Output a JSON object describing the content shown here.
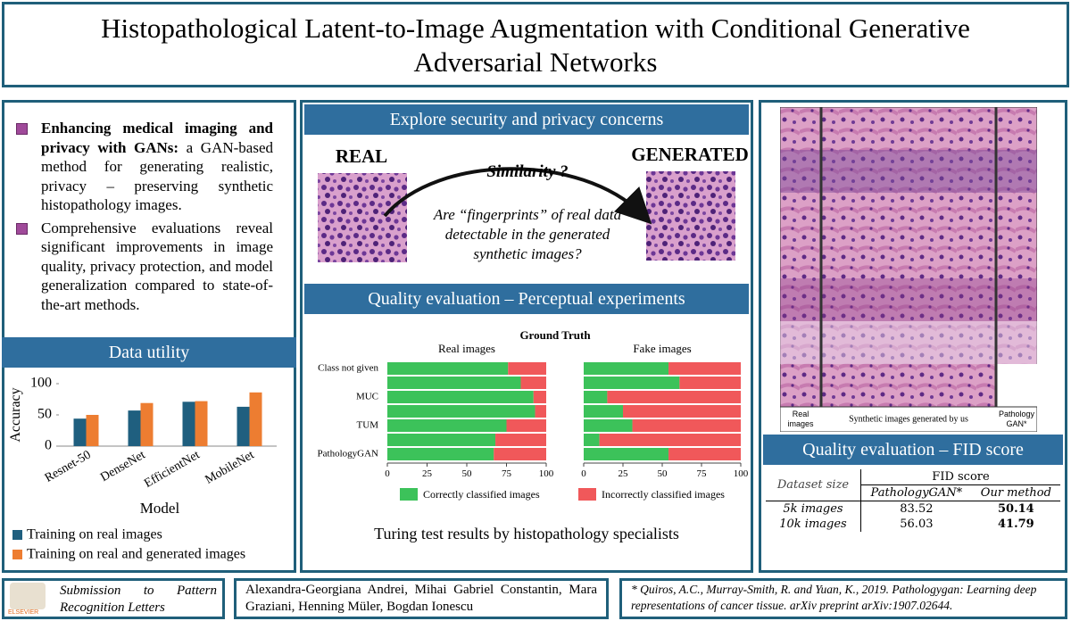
{
  "header": {
    "title": "Histopathological Latent-to-Image Augmentation with Conditional Generative Adversarial Networks"
  },
  "intro": {
    "bullets": [
      {
        "bold": "Enhancing medical imaging and privacy with GANs:",
        "text": " a GAN-based method for generating realistic, privacy – preserving synthetic histopathology images."
      },
      {
        "text": "Comprehensive evaluations reveal significant improvements in image quality, privacy protection, and model generalization compared to state-of-the-art methods."
      }
    ]
  },
  "data_utility": {
    "title": "Data utility"
  },
  "security": {
    "title": "Explore security and privacy concerns",
    "real": "REAL",
    "generated": "GENERATED",
    "similarity": "Similarity ?",
    "question": "Are “fingerprints” of real data detectable in the generated synthetic images?"
  },
  "perceptual": {
    "title": "Quality evaluation – Perceptual experiments",
    "caption": "Turing test results by histopathology specialists"
  },
  "samples": {
    "labels": [
      "Real images",
      "Synthetic images generated by us",
      "Pathology GAN*"
    ]
  },
  "fid": {
    "title": "Quality evaluation – FID score",
    "table": {
      "group_header": "FID score",
      "row_header": "Dataset size",
      "columns": [
        "PathologyGAN*",
        "Our method"
      ],
      "rows": [
        [
          "5k images",
          "83.52",
          "50.14"
        ],
        [
          "10k images",
          "56.03",
          "41.79"
        ]
      ]
    }
  },
  "footer": {
    "venue": "Submission to Pattern Recognition Letters",
    "publisher": "ELSEVIER",
    "authors": "Alexandra-Georgiana Andrei, Mihai Gabriel Constantin, Mara Graziani, Henning Müler, Bogdan Ionescu",
    "reference": "* Quiros, A.C., Murray-Smith, R. and Yuan, K., 2019. Pathologygan: Learning deep representations of cancer tissue. arXiv preprint arXiv:1907.02644."
  },
  "chart_data": [
    {
      "type": "bar",
      "categories": [
        "Resnet-50",
        "DenseNet",
        "EfficientNet",
        "MobileNet"
      ],
      "series": [
        {
          "name": "Training on real images",
          "color": "#1f5f7f",
          "values": [
            44,
            57,
            71,
            63
          ]
        },
        {
          "name": "Training on real and generated images",
          "color": "#ed7d31",
          "values": [
            50,
            69,
            72,
            86
          ]
        }
      ],
      "y_label": "Accuracy",
      "x_label": "Model",
      "ylim": [
        0,
        100
      ],
      "yticks": [
        0,
        50,
        100
      ]
    },
    {
      "type": "barh_stacked",
      "title": "Ground Truth",
      "categories": [
        "Class not given",
        null,
        "MUC",
        null,
        "TUM",
        null,
        "PathologyGAN"
      ],
      "legend": [
        {
          "name": "Correctly classified images",
          "color": "#3cc25a"
        },
        {
          "name": "Incorrectly classified images",
          "color": "#f0585a"
        }
      ],
      "panels": [
        {
          "title": "Real images",
          "series": [
            {
              "values": [
                76,
                84,
                92,
                93,
                75,
                68,
                67
              ]
            },
            {
              "values": [
                24,
                16,
                8,
                7,
                25,
                32,
                33
              ]
            }
          ]
        },
        {
          "title": "Fake images",
          "series": [
            {
              "values": [
                54,
                61,
                15,
                25,
                31,
                10,
                54
              ]
            },
            {
              "values": [
                46,
                39,
                85,
                75,
                69,
                90,
                46
              ]
            }
          ]
        }
      ],
      "xlim": [
        0,
        100
      ],
      "xticks": [
        0,
        25,
        50,
        75,
        100
      ]
    }
  ]
}
